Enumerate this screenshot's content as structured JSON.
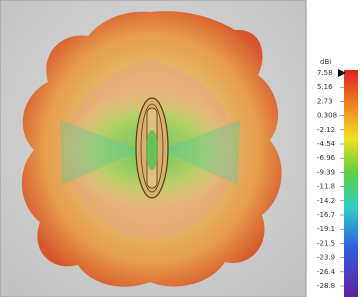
{
  "colorbar": {
    "unit": "dBi",
    "labels": [
      "7.58",
      "5.16",
      "2.73",
      "0.308",
      "-2.12",
      "-4.54",
      "-6.96",
      "-9.39",
      "-11.8",
      "-14.2",
      "-16.7",
      "-19.1",
      "-21.5",
      "-23.9",
      "-26.4",
      "-28.8"
    ]
  }
}
